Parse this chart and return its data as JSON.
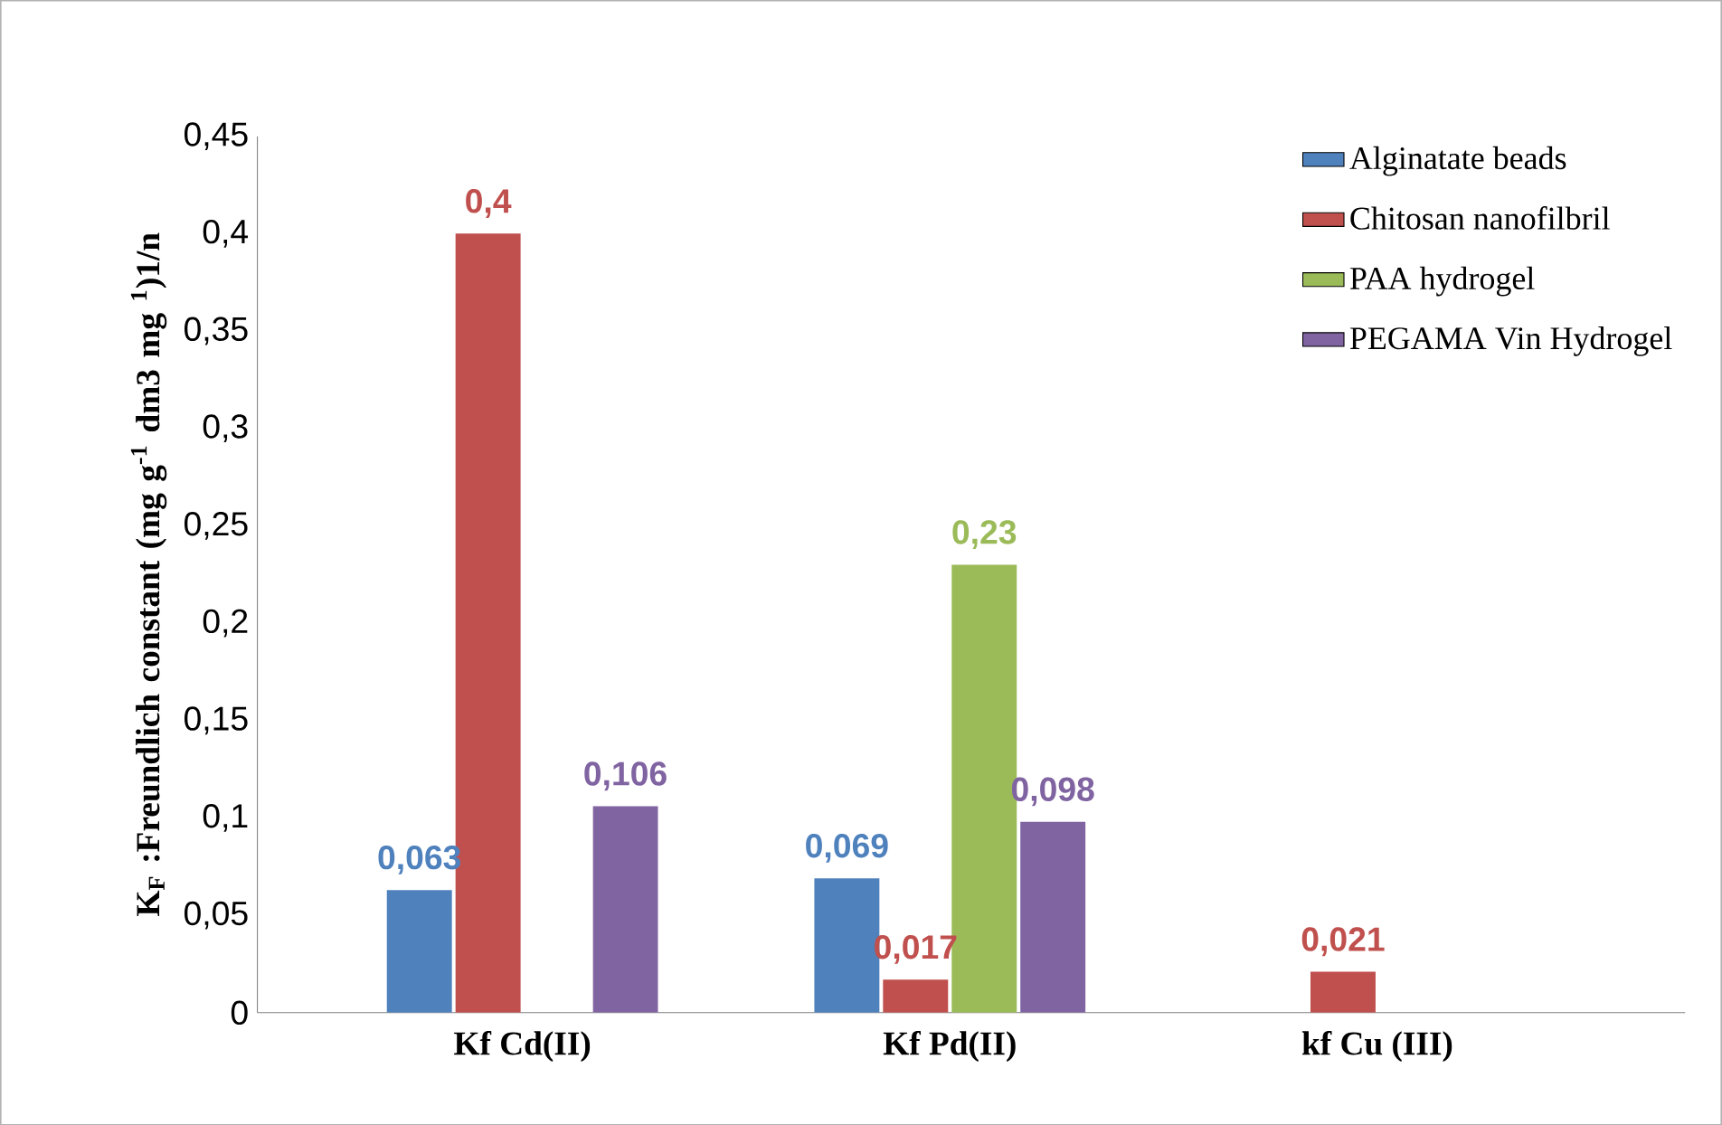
{
  "chart_data": {
    "type": "bar",
    "ylabel": "K$_{F}$ :Freundlich constant (mg g$^{-1}$ dm3 mg $^{1}$)1/n",
    "categories": [
      "Kf Cd(II)",
      "Kf Pd(II)",
      "kf Cu (III)"
    ],
    "series": [
      {
        "name": "Alginatate beads",
        "color": "#4f81bd",
        "values": [
          0.063,
          0.069,
          null
        ],
        "value_labels": [
          "0,063",
          "0,069",
          null
        ]
      },
      {
        "name": "Chitosan nanofilbril",
        "color": "#c0504d",
        "values": [
          0.4,
          0.017,
          0.021
        ],
        "value_labels": [
          "0,4",
          "0,017",
          "0,021"
        ]
      },
      {
        "name": "PAA hydrogel",
        "color": "#9bbb59",
        "values": [
          null,
          0.23,
          null
        ],
        "value_labels": [
          null,
          "0,23",
          null
        ]
      },
      {
        "name": "PEGAMA Vin Hydrogel",
        "color": "#8064a2",
        "values": [
          0.106,
          0.098,
          null
        ],
        "value_labels": [
          "0,106",
          "0,098",
          null
        ]
      }
    ],
    "ylim": [
      0,
      0.45
    ],
    "yticks": [
      0,
      {
        "value": 0.05,
        "label": "0,05"
      },
      {
        "value": 0.1,
        "label": "0,1"
      },
      {
        "value": 0.15,
        "label": "0,15"
      },
      {
        "value": 0.2,
        "label": "0,2"
      },
      {
        "value": 0.25,
        "label": "0,25"
      },
      {
        "value": 0.3,
        "label": "0,3"
      },
      {
        "value": 0.35,
        "label": "0,35"
      },
      {
        "value": 0.4,
        "label": "0,4"
      },
      {
        "value": 0.45,
        "label": "0,45"
      }
    ],
    "grid": false,
    "legend": "top right"
  }
}
